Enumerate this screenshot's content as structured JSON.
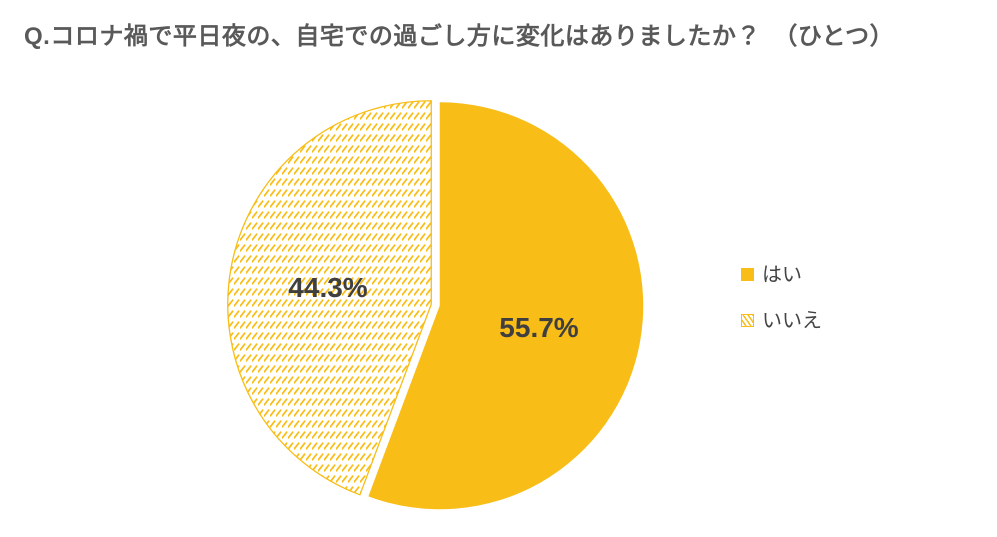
{
  "title": "Q.コロナ禍で平日夜の、自宅での過ごし方に変化はありましたか？　（ひとつ）",
  "colors": {
    "accent": "#F8BD17",
    "title_text": "#595959",
    "data_label_text": "#3F3F3F",
    "background": "#FFFFFF"
  },
  "legend": {
    "position": "right",
    "items": [
      {
        "label": "はい",
        "swatch": "solid"
      },
      {
        "label": "いいえ",
        "swatch": "hatched"
      }
    ]
  },
  "chart_data": {
    "type": "pie",
    "title": "Q.コロナ禍で平日夜の、自宅での過ごし方に変化はありましたか？（ひとつ）",
    "categories": [
      "はい",
      "いいえ"
    ],
    "values": [
      55.7,
      44.3
    ],
    "unit": "%",
    "data_labels": [
      "55.7%",
      "44.3%"
    ],
    "start_angle_deg": 0,
    "direction": "clockwise",
    "slice_styles": [
      "solid",
      "hatched"
    ],
    "legend_position": "right"
  }
}
